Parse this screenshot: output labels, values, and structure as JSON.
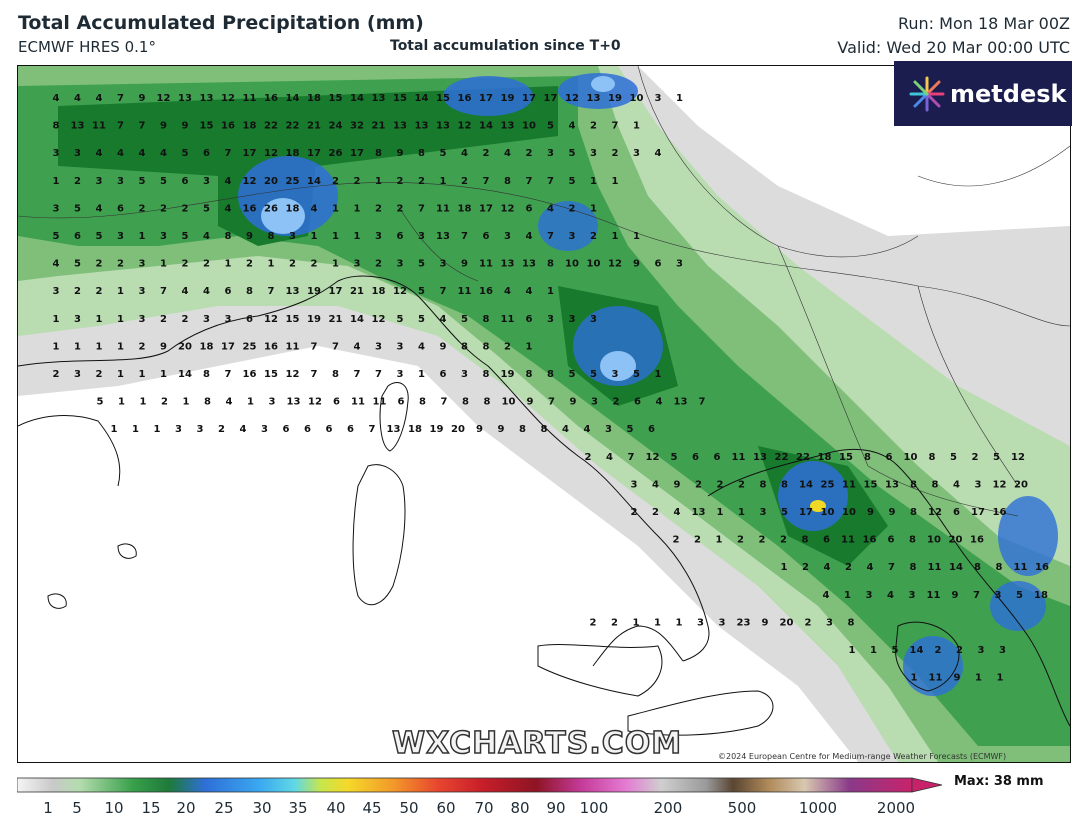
{
  "header": {
    "title": "Total Accumulated Precipitation (mm)",
    "model": "ECMWF HRES 0.1°",
    "subtitle": "Total accumulation since T+0",
    "run": "Run: Mon 18 Mar 00Z",
    "valid": "Valid: Wed 20 Mar 00:00 UTC"
  },
  "logo": {
    "text": "metdesk",
    "icon": "metdesk-starburst-icon"
  },
  "watermark": "WXCHARTS.COM",
  "copyright": "©2024 European Centre for Medium-range Weather Forecasts (ECMWF)",
  "scale": {
    "max_label": "Max: 38 mm",
    "ticks": [
      "1",
      "5",
      "10",
      "15",
      "20",
      "25",
      "30",
      "35",
      "40",
      "45",
      "50",
      "60",
      "70",
      "80",
      "90",
      "100",
      "200",
      "500",
      "1000",
      "2000"
    ]
  },
  "colors": {
    "light_green": "#b9dcb1",
    "green": "#3fa150",
    "dark_green": "#177a2c",
    "blue": "#2e6fd8",
    "light_blue": "#8cc2f5",
    "grey": "#d4d4d4",
    "logo_bg": "#1a1d4e"
  },
  "map_values": [
    [
      "4",
      "4",
      "4",
      "7",
      "9",
      "12",
      "13",
      "13",
      "12",
      "11",
      "16",
      "14",
      "18",
      "15",
      "14",
      "13",
      "15",
      "14",
      "15",
      "16",
      "17",
      "19",
      "17",
      "17",
      "12",
      "13",
      "19",
      "10",
      "3",
      "1"
    ],
    [
      "8",
      "13",
      "11",
      "7",
      "7",
      "9",
      "9",
      "15",
      "16",
      "18",
      "22",
      "22",
      "21",
      "24",
      "32",
      "21",
      "13",
      "13",
      "13",
      "12",
      "14",
      "13",
      "10",
      "5",
      "4",
      "2",
      "7",
      "1"
    ],
    [
      "3",
      "3",
      "4",
      "4",
      "4",
      "4",
      "5",
      "6",
      "7",
      "17",
      "12",
      "18",
      "17",
      "26",
      "17",
      "8",
      "9",
      "8",
      "5",
      "4",
      "2",
      "4",
      "2",
      "3",
      "5",
      "3",
      "2",
      "3",
      "4"
    ],
    [
      "1",
      "2",
      "3",
      "3",
      "5",
      "5",
      "6",
      "3",
      "4",
      "12",
      "20",
      "25",
      "14",
      "2",
      "2",
      "1",
      "2",
      "2",
      "1",
      "2",
      "7",
      "8",
      "7",
      "7",
      "5",
      "1",
      "1"
    ],
    [
      "3",
      "5",
      "4",
      "6",
      "2",
      "2",
      "2",
      "5",
      "4",
      "16",
      "26",
      "18",
      "4",
      "1",
      "1",
      "2",
      "2",
      "7",
      "11",
      "18",
      "17",
      "12",
      "6",
      "4",
      "2",
      "1"
    ],
    [
      "5",
      "6",
      "5",
      "3",
      "1",
      "3",
      "5",
      "4",
      "8",
      "9",
      "8",
      "3",
      "1",
      "1",
      "1",
      "3",
      "6",
      "3",
      "13",
      "7",
      "6",
      "3",
      "4",
      "7",
      "3",
      "2",
      "1",
      "1"
    ],
    [
      "4",
      "5",
      "2",
      "2",
      "3",
      "1",
      "2",
      "2",
      "1",
      "2",
      "1",
      "2",
      "2",
      "1",
      "3",
      "2",
      "3",
      "5",
      "3",
      "9",
      "11",
      "13",
      "13",
      "8",
      "10",
      "10",
      "12",
      "9",
      "6",
      "3"
    ],
    [
      "3",
      "2",
      "2",
      "1",
      "3",
      "7",
      "4",
      "4",
      "6",
      "8",
      "7",
      "13",
      "19",
      "17",
      "21",
      "18",
      "12",
      "5",
      "7",
      "11",
      "16",
      "4",
      "4",
      "1"
    ],
    [
      "1",
      "3",
      "1",
      "1",
      "3",
      "2",
      "2",
      "3",
      "3",
      "6",
      "12",
      "15",
      "19",
      "21",
      "14",
      "12",
      "5",
      "5",
      "4",
      "5",
      "8",
      "11",
      "6",
      "3",
      "3",
      "3"
    ],
    [
      "1",
      "1",
      "1",
      "1",
      "2",
      "9",
      "20",
      "18",
      "17",
      "25",
      "16",
      "11",
      "7",
      "7",
      "4",
      "3",
      "3",
      "4",
      "9",
      "8",
      "8",
      "2",
      "1"
    ],
    [
      "2",
      "3",
      "2",
      "1",
      "1",
      "1",
      "14",
      "8",
      "7",
      "16",
      "15",
      "12",
      "7",
      "8",
      "7",
      "7",
      "3",
      "1",
      "6",
      "3",
      "8",
      "19",
      "8",
      "8",
      "5",
      "5",
      "3",
      "5",
      "1"
    ],
    [
      "5",
      "1",
      "1",
      "2",
      "1",
      "8",
      "4",
      "1",
      "3",
      "13",
      "12",
      "6",
      "11",
      "11",
      "6",
      "8",
      "7",
      "8",
      "8",
      "10",
      "9",
      "7",
      "9",
      "3",
      "2",
      "6",
      "4",
      "13",
      "7"
    ],
    [
      "1",
      "1",
      "1",
      "3",
      "3",
      "2",
      "4",
      "3",
      "6",
      "6",
      "6",
      "6",
      "7",
      "13",
      "18",
      "19",
      "20",
      "9",
      "9",
      "8",
      "8",
      "4",
      "4",
      "3",
      "5",
      "6"
    ],
    [
      "2",
      "4",
      "7",
      "12",
      "5",
      "6",
      "6",
      "11",
      "13",
      "22",
      "22",
      "18",
      "15",
      "8",
      "6",
      "10",
      "8",
      "5",
      "2",
      "5",
      "12"
    ],
    [
      "3",
      "4",
      "9",
      "2",
      "2",
      "2",
      "8",
      "8",
      "14",
      "25",
      "11",
      "15",
      "13",
      "8",
      "8",
      "4",
      "3",
      "12",
      "20"
    ],
    [
      "2",
      "2",
      "4",
      "13",
      "1",
      "1",
      "3",
      "5",
      "17",
      "10",
      "10",
      "9",
      "9",
      "8",
      "12",
      "6",
      "17",
      "16"
    ],
    [
      "2",
      "2",
      "1",
      "2",
      "2",
      "2",
      "8",
      "6",
      "11",
      "16",
      "6",
      "8",
      "10",
      "20",
      "16"
    ],
    [
      "1",
      "2",
      "4",
      "2",
      "4",
      "7",
      "8",
      "11",
      "14",
      "8",
      "8",
      "11",
      "16"
    ],
    [
      "4",
      "1",
      "3",
      "4",
      "3",
      "11",
      "9",
      "7",
      "3",
      "5",
      "18"
    ],
    [
      "2",
      "2",
      "1",
      "1",
      "1",
      "3",
      "3",
      "23",
      "9",
      "20",
      "2",
      "3",
      "8"
    ],
    [
      "1",
      "1",
      "5",
      "14",
      "2",
      "2",
      "3",
      "3"
    ],
    [
      "1",
      "11",
      "9",
      "1",
      "1"
    ]
  ]
}
